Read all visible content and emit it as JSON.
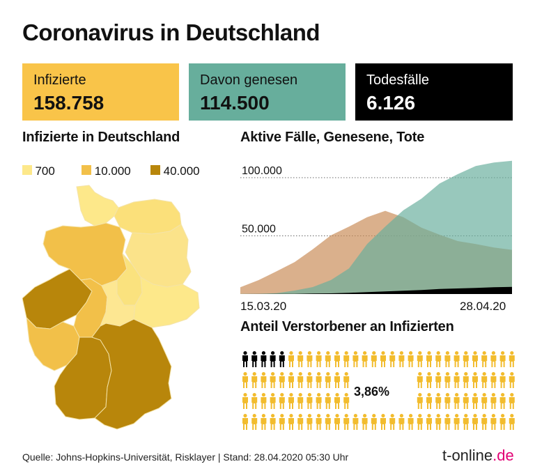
{
  "title": "Coronavirus in Deutschland",
  "stats": [
    {
      "label": "Infizierte",
      "value": "158.758",
      "color": "#f9c449",
      "text_color": "#111111"
    },
    {
      "label": "Davon genesen",
      "value": "114.500",
      "color": "#67ae9c",
      "text_color": "#111111"
    },
    {
      "label": "Todesfälle",
      "value": "6.126",
      "color": "#000000",
      "text_color": "#ffffff"
    }
  ],
  "map": {
    "heading": "Infizierte in Deutschland",
    "legend": [
      {
        "label": "700",
        "color": "#fde88a"
      },
      {
        "label": "10.000",
        "color": "#f2c049"
      },
      {
        "label": "40.000",
        "color": "#b8860b"
      }
    ]
  },
  "area_chart": {
    "heading": "Aktive Fälle, Genesene, Tote",
    "x_start_label": "15.03.20",
    "x_end_label": "28.04.20",
    "y_grid_labels": [
      "100.000",
      "50.000"
    ]
  },
  "chart_data": {
    "type": "area",
    "title": "Aktive Fälle, Genesene, Tote",
    "x": [
      "15.03.20",
      "18.03.20",
      "21.03.20",
      "24.03.20",
      "27.03.20",
      "30.03.20",
      "02.04.20",
      "05.04.20",
      "08.04.20",
      "11.04.20",
      "14.04.20",
      "17.04.20",
      "20.04.20",
      "23.04.20",
      "26.04.20",
      "28.04.20"
    ],
    "ylim": [
      0,
      115000
    ],
    "y_gridlines": [
      50000,
      100000
    ],
    "grid": "dotted horizontal",
    "series": [
      {
        "color": "#c98a55",
        "values": [
          5800,
          11900,
          19500,
          27500,
          38500,
          50500,
          58000,
          66000,
          71500,
          66000,
          57000,
          51000,
          45500,
          43000,
          40000,
          38000
        ]
      },
      {
        "color": "#67ae9c",
        "values": [
          100,
          200,
          800,
          3000,
          6000,
          12000,
          22000,
          43000,
          58000,
          72000,
          82000,
          95000,
          103000,
          110000,
          113000,
          114500
        ]
      },
      {
        "color": "#000000",
        "values": [
          10,
          50,
          100,
          200,
          400,
          600,
          1100,
          1600,
          2300,
          2800,
          3400,
          4300,
          4800,
          5300,
          5800,
          6126
        ]
      }
    ]
  },
  "deaths_share": {
    "heading": "Anteil Verstorbener an Infizierten",
    "percent_label": "3,86%",
    "percent": 3.86,
    "colors": {
      "dead": "#000000",
      "infected": "#f2bc2e"
    }
  },
  "footer": {
    "source": "Quelle: Johns-Hopkins-Universität, Risklayer | Stand: 28.04.2020 05:30 Uhr",
    "brand": "t-online",
    "brand_tld": ".de"
  }
}
